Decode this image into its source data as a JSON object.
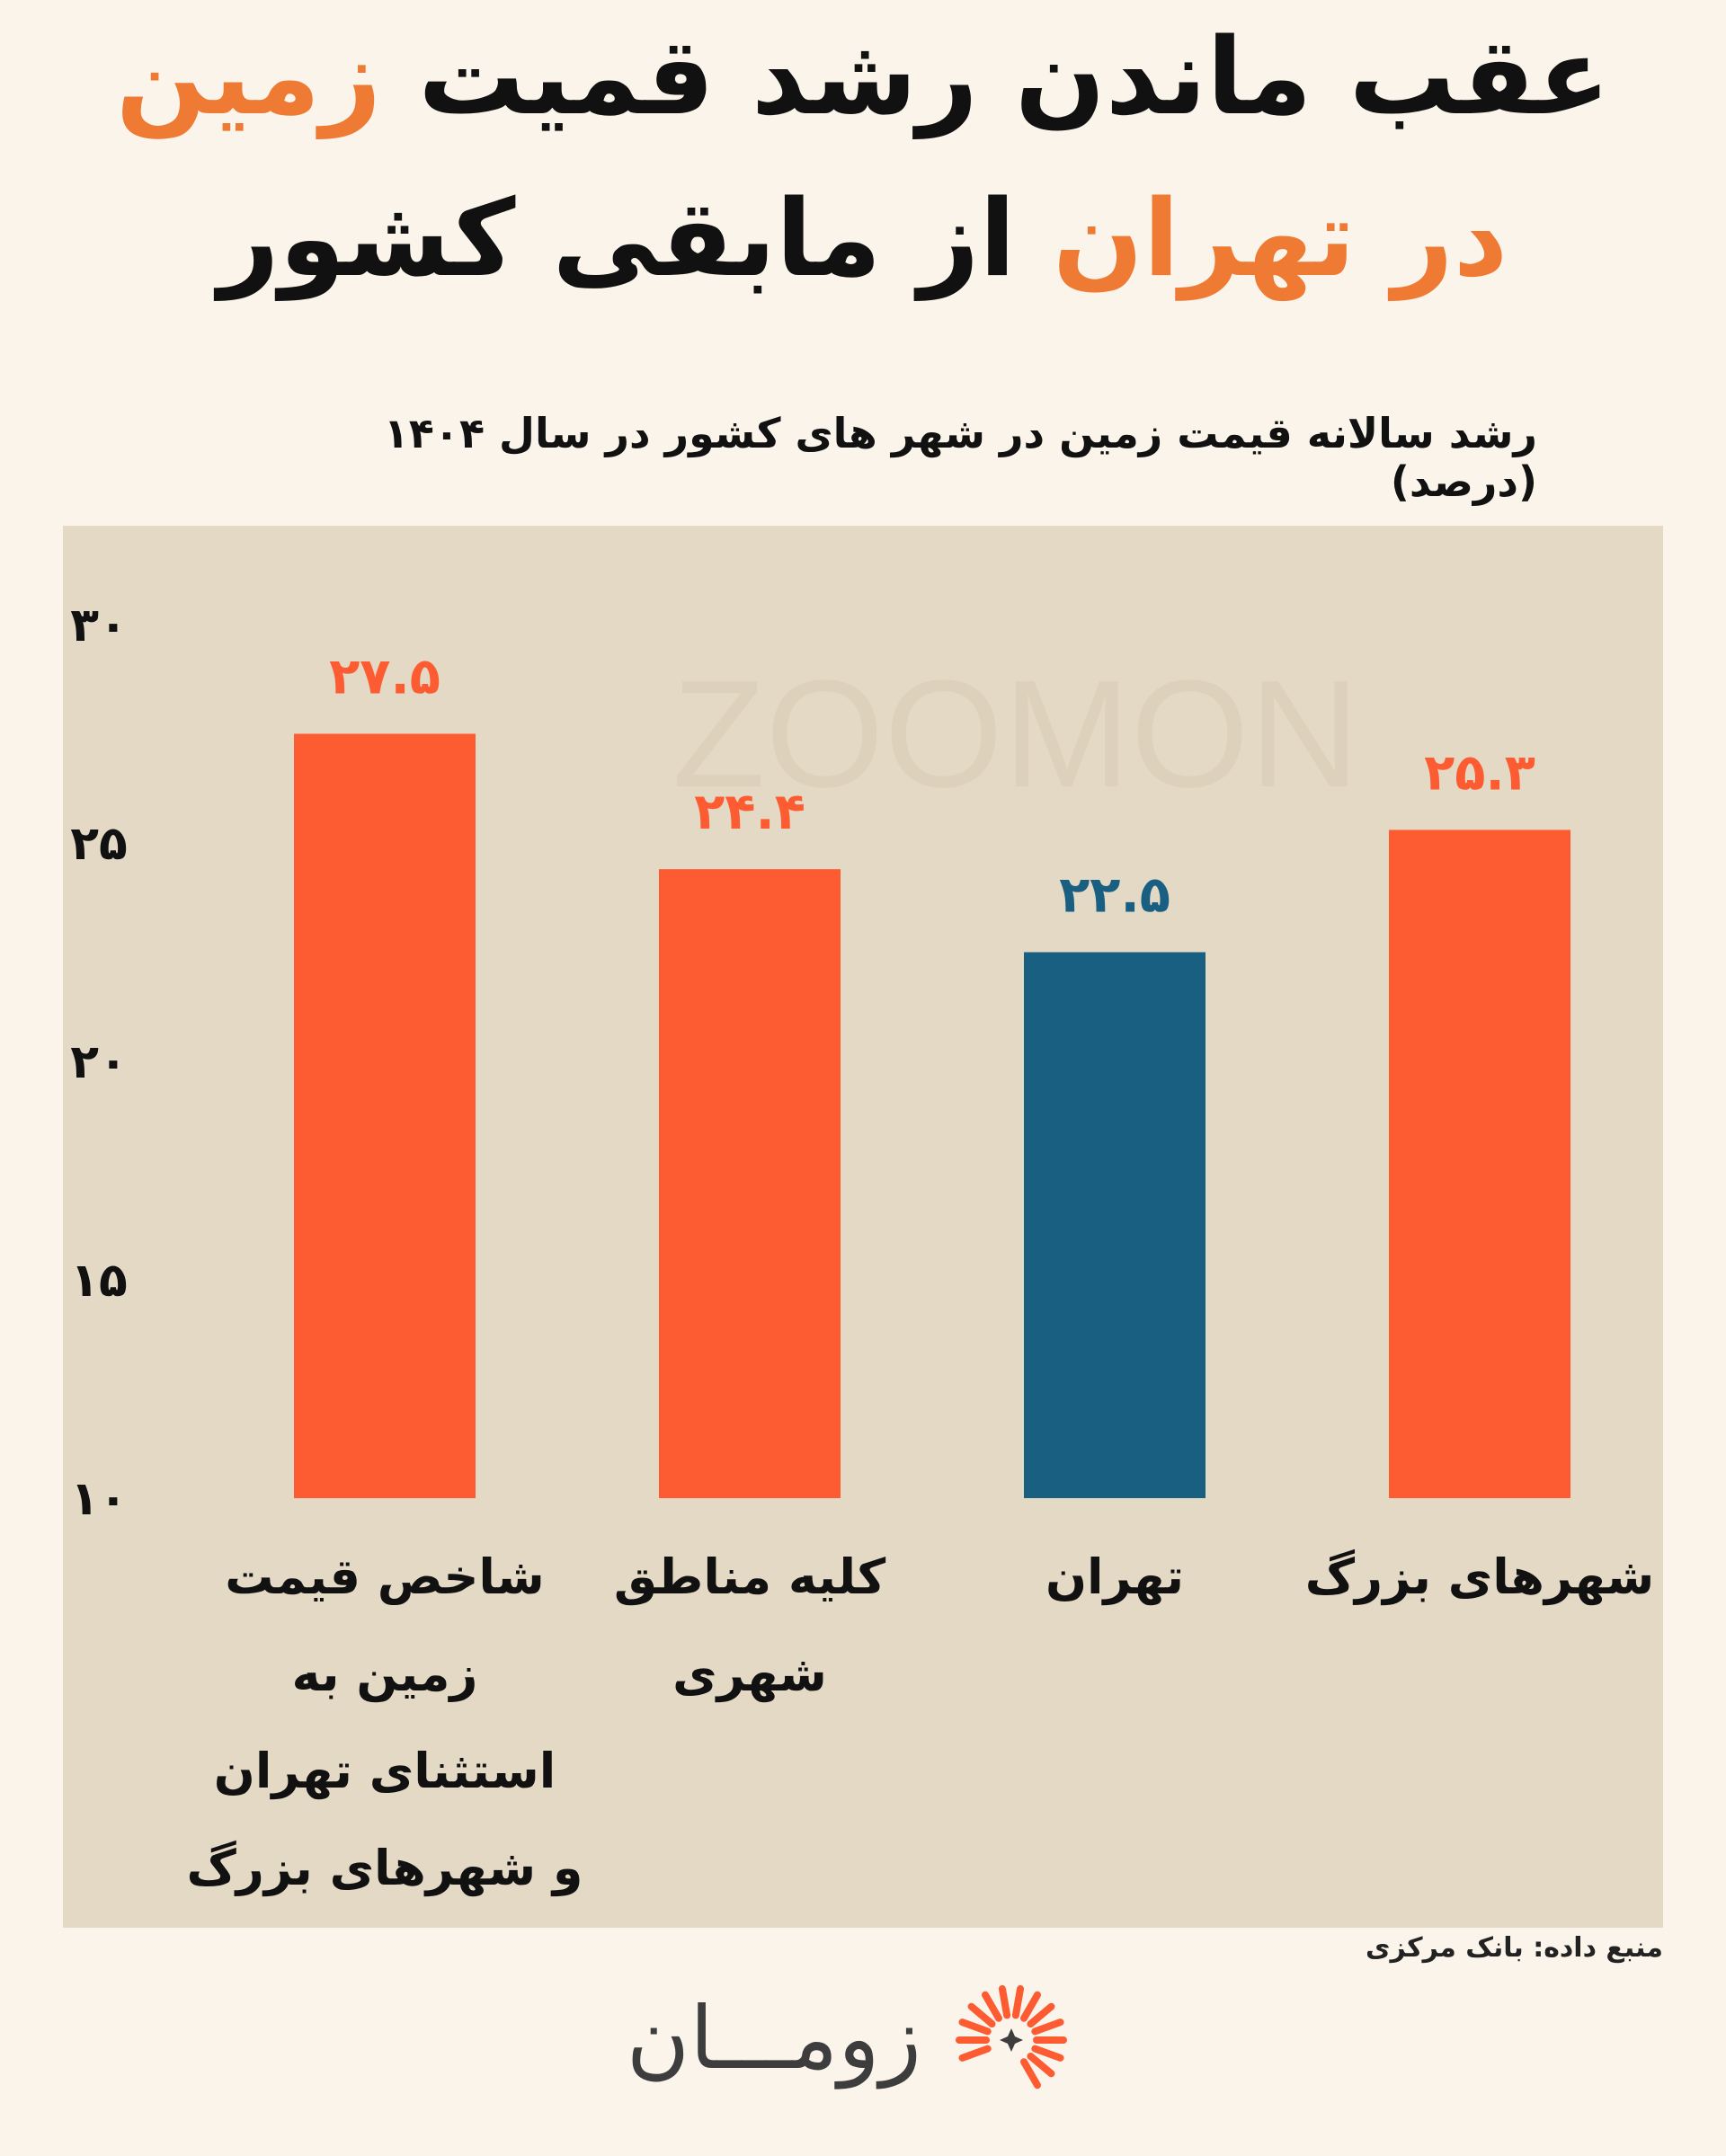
{
  "header": {
    "line1_a": "عقب ماندن رشد قمیت ",
    "line1_b": "زمین",
    "line2_a": "در تهران",
    "line2_b": " از مابقی کشور"
  },
  "chart_data": {
    "type": "bar",
    "title": "رشد سالانه قیمت زمین در شهر های کشور در سال ۱۴۰۴ (درصد)",
    "categories": [
      "شاخص قیمت زمین به استثنای تهران و شهرهای بزرگ",
      "کلیه مناطق شهری",
      "تهران",
      "شهرهای بزرگ"
    ],
    "category_lines": [
      [
        "شاخص قیمت",
        "زمین به",
        "استثنای تهران",
        "و شهرهای بزرگ"
      ],
      [
        "کلیه مناطق",
        "شهری"
      ],
      [
        "تهران"
      ],
      [
        "شهرهای بزرگ"
      ]
    ],
    "values": [
      27.5,
      24.4,
      22.5,
      25.3
    ],
    "value_labels": [
      "۲۷.۵",
      "۲۴.۴",
      "۲۲.۵",
      "۲۵.۳"
    ],
    "bar_colors": [
      "#fd5c33",
      "#fd5c33",
      "#185f82",
      "#fd5c33"
    ],
    "label_colors": [
      "#fd5c33",
      "#fd5c33",
      "#185f82",
      "#fd5c33"
    ],
    "ylim": [
      10,
      30
    ],
    "yticks": [
      10,
      15,
      20,
      25,
      30
    ],
    "ytick_labels": [
      "۱۰",
      "۱۵",
      "۲۰",
      "۲۵",
      "۳۰"
    ],
    "grid": false,
    "watermark": "ZOOMON"
  },
  "footer": {
    "source": "منبع داده: بانک مرکزی",
    "logo_text": "زومـــان"
  }
}
